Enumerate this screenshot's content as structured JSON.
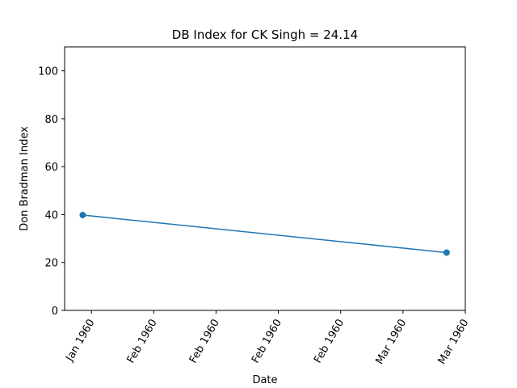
{
  "chart_data": {
    "type": "line",
    "title": "DB Index for CK Singh = 24.14",
    "x_label": "Date",
    "y_label": "Don Bradman Index",
    "x": [
      -0.14,
      5.7
    ],
    "series": [
      {
        "color": "#1f77b4",
        "values": [
          39.8,
          24.14
        ]
      }
    ],
    "xlim": [
      -0.43,
      6.0
    ],
    "xticks": [
      {
        "value": 0,
        "label": "Jan 1960"
      },
      {
        "value": 1,
        "label": "Feb 1960"
      },
      {
        "value": 2,
        "label": "Feb 1960"
      },
      {
        "value": 3,
        "label": "Feb 1960"
      },
      {
        "value": 4,
        "label": "Feb 1960"
      },
      {
        "value": 5,
        "label": "Mar 1960"
      },
      {
        "value": 6,
        "label": "Mar 1960"
      }
    ],
    "ylim": [
      0,
      110
    ],
    "yticks": [
      0,
      20,
      40,
      60,
      80,
      100
    ],
    "grid": false
  }
}
